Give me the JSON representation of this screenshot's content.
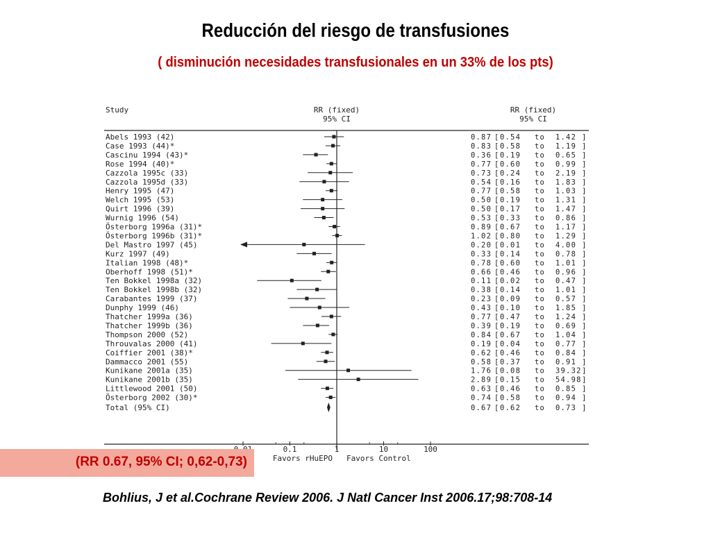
{
  "title": "Reducción del riesgo de transfusiones",
  "subtitle": "( disminución necesidades transfusionales en un 33% de los pts)",
  "highlight": "(RR 0.67, 95% CI; 0,62-0,73)",
  "citation": "Bohlius, J et al.Cochrane Review 2006. J Natl Cancer Inst 2006.17;98:708-14",
  "chart_data": {
    "type": "forest",
    "headers": {
      "study": "Study",
      "rr_plot": "RR (fixed)",
      "ci_plot": "95% CI",
      "rr_col": "RR (fixed)",
      "ci_col": "95% CI"
    },
    "xscale": "log",
    "xlim": [
      0.01,
      100
    ],
    "x_ticks": [
      "0.01",
      "0.1",
      "1",
      "10",
      "100"
    ],
    "x_tick_values": [
      0.01,
      0.1,
      1,
      10,
      100
    ],
    "favors_left": "Favors rHuEPO",
    "favors_right": "Favors Control",
    "studies": [
      {
        "name": "Abels 1993 (42)",
        "rr": 0.87,
        "lo": 0.54,
        "hi": 1.42,
        "rr_text": "0.87",
        "lo_text": "0.54",
        "hi_text": "1.42"
      },
      {
        "name": "Case 1993 (44)*",
        "rr": 0.83,
        "lo": 0.58,
        "hi": 1.19,
        "rr_text": "0.83",
        "lo_text": "0.58",
        "hi_text": "1.19"
      },
      {
        "name": "Cascinu 1994 (43)*",
        "rr": 0.36,
        "lo": 0.19,
        "hi": 0.65,
        "rr_text": "0.36",
        "lo_text": "0.19",
        "hi_text": "0.65"
      },
      {
        "name": "Rose 1994 (40)*",
        "rr": 0.77,
        "lo": 0.6,
        "hi": 0.99,
        "rr_text": "0.77",
        "lo_text": "0.60",
        "hi_text": "0.99"
      },
      {
        "name": "Cazzola 1995c (33)",
        "rr": 0.73,
        "lo": 0.24,
        "hi": 2.19,
        "rr_text": "0.73",
        "lo_text": "0.24",
        "hi_text": "2.19"
      },
      {
        "name": "Cazzola 1995d (33)",
        "rr": 0.54,
        "lo": 0.16,
        "hi": 1.83,
        "rr_text": "0.54",
        "lo_text": "0.16",
        "hi_text": "1.83"
      },
      {
        "name": "Henry 1995 (47)",
        "rr": 0.77,
        "lo": 0.58,
        "hi": 1.03,
        "rr_text": "0.77",
        "lo_text": "0.58",
        "hi_text": "1.03"
      },
      {
        "name": "Welch 1995 (53)",
        "rr": 0.5,
        "lo": 0.19,
        "hi": 1.31,
        "rr_text": "0.50",
        "lo_text": "0.19",
        "hi_text": "1.31"
      },
      {
        "name": "Quirt 1996 (39)",
        "rr": 0.5,
        "lo": 0.17,
        "hi": 1.47,
        "rr_text": "0.50",
        "lo_text": "0.17",
        "hi_text": "1.47"
      },
      {
        "name": "Wurnig 1996 (54)",
        "rr": 0.53,
        "lo": 0.33,
        "hi": 0.86,
        "rr_text": "0.53",
        "lo_text": "0.33",
        "hi_text": "0.86"
      },
      {
        "name": "Österborg 1996a (31)*",
        "rr": 0.89,
        "lo": 0.67,
        "hi": 1.17,
        "rr_text": "0.89",
        "lo_text": "0.67",
        "hi_text": "1.17"
      },
      {
        "name": "Österborg 1996b (31)*",
        "rr": 1.02,
        "lo": 0.8,
        "hi": 1.29,
        "rr_text": "1.02",
        "lo_text": "0.80",
        "hi_text": "1.29"
      },
      {
        "name": "Del Mastro 1997 (45)",
        "rr": 0.2,
        "lo": 0.01,
        "hi": 4.0,
        "rr_text": "0.20",
        "lo_text": "0.01",
        "hi_text": "4.00"
      },
      {
        "name": "Kurz 1997 (49)",
        "rr": 0.33,
        "lo": 0.14,
        "hi": 0.78,
        "rr_text": "0.33",
        "lo_text": "0.14",
        "hi_text": "0.78"
      },
      {
        "name": "Italian 1998 (48)*",
        "rr": 0.78,
        "lo": 0.6,
        "hi": 1.01,
        "rr_text": "0.78",
        "lo_text": "0.60",
        "hi_text": "1.01"
      },
      {
        "name": "Oberhoff 1998 (51)*",
        "rr": 0.66,
        "lo": 0.46,
        "hi": 0.96,
        "rr_text": "0.66",
        "lo_text": "0.46",
        "hi_text": "0.96"
      },
      {
        "name": "Ten Bokkel 1998a (32)",
        "rr": 0.11,
        "lo": 0.02,
        "hi": 0.47,
        "rr_text": "0.11",
        "lo_text": "0.02",
        "hi_text": "0.47"
      },
      {
        "name": "Ten Bokkel 1998b  (32)",
        "rr": 0.38,
        "lo": 0.14,
        "hi": 1.01,
        "rr_text": "0.38",
        "lo_text": "0.14",
        "hi_text": "1.01"
      },
      {
        "name": "Carabantes 1999 (37)",
        "rr": 0.23,
        "lo": 0.09,
        "hi": 0.57,
        "rr_text": "0.23",
        "lo_text": "0.09",
        "hi_text": "0.57"
      },
      {
        "name": "Dunphy 1999 (46)",
        "rr": 0.43,
        "lo": 0.1,
        "hi": 1.85,
        "rr_text": "0.43",
        "lo_text": "0.10",
        "hi_text": "1.85"
      },
      {
        "name": "Thatcher 1999a (36)",
        "rr": 0.77,
        "lo": 0.47,
        "hi": 1.24,
        "rr_text": "0.77",
        "lo_text": "0.47",
        "hi_text": "1.24"
      },
      {
        "name": "Thatcher 1999b (36)",
        "rr": 0.39,
        "lo": 0.19,
        "hi": 0.69,
        "rr_text": "0.39",
        "lo_text": "0.19",
        "hi_text": "0.69"
      },
      {
        "name": "Thompson 2000 (52)",
        "rr": 0.84,
        "lo": 0.67,
        "hi": 1.04,
        "rr_text": "0.84",
        "lo_text": "0.67",
        "hi_text": "1.04"
      },
      {
        "name": "Throuvalas 2000 (41)",
        "rr": 0.19,
        "lo": 0.04,
        "hi": 0.77,
        "rr_text": "0.19",
        "lo_text": "0.04",
        "hi_text": "0.77"
      },
      {
        "name": "Coiffier 2001 (38)*",
        "rr": 0.62,
        "lo": 0.46,
        "hi": 0.84,
        "rr_text": "0.62",
        "lo_text": "0.46",
        "hi_text": "0.84"
      },
      {
        "name": "Dammacco 2001 (55)",
        "rr": 0.58,
        "lo": 0.37,
        "hi": 0.91,
        "rr_text": "0.58",
        "lo_text": "0.37",
        "hi_text": "0.91"
      },
      {
        "name": "Kunikane 2001a (35)",
        "rr": 1.76,
        "lo": 0.08,
        "hi": 39.32,
        "rr_text": "1.76",
        "lo_text": "0.08",
        "hi_text": "39.32"
      },
      {
        "name": "Kunikane 2001b (35)",
        "rr": 2.89,
        "lo": 0.15,
        "hi": 54.98,
        "rr_text": "2.89",
        "lo_text": "0.15",
        "hi_text": "54.98"
      },
      {
        "name": "Littlewood 2001 (50)",
        "rr": 0.63,
        "lo": 0.46,
        "hi": 0.85,
        "rr_text": "0.63",
        "lo_text": "0.46",
        "hi_text": "0.85"
      },
      {
        "name": "Österborg 2002 (30)*",
        "rr": 0.74,
        "lo": 0.58,
        "hi": 0.94,
        "rr_text": "0.74",
        "lo_text": "0.58",
        "hi_text": "0.94"
      }
    ],
    "total": {
      "name": "Total (95% CI)",
      "rr": 0.67,
      "lo": 0.62,
      "hi": 0.73,
      "rr_text": "0.67",
      "lo_text": "0.62",
      "hi_text": "0.73"
    },
    "ci_separator": "to",
    "colors": {
      "ink": "#222222",
      "highlight_bg": "#f3a99c",
      "highlight_text": "#c00000",
      "subtitle": "#c00000"
    }
  }
}
